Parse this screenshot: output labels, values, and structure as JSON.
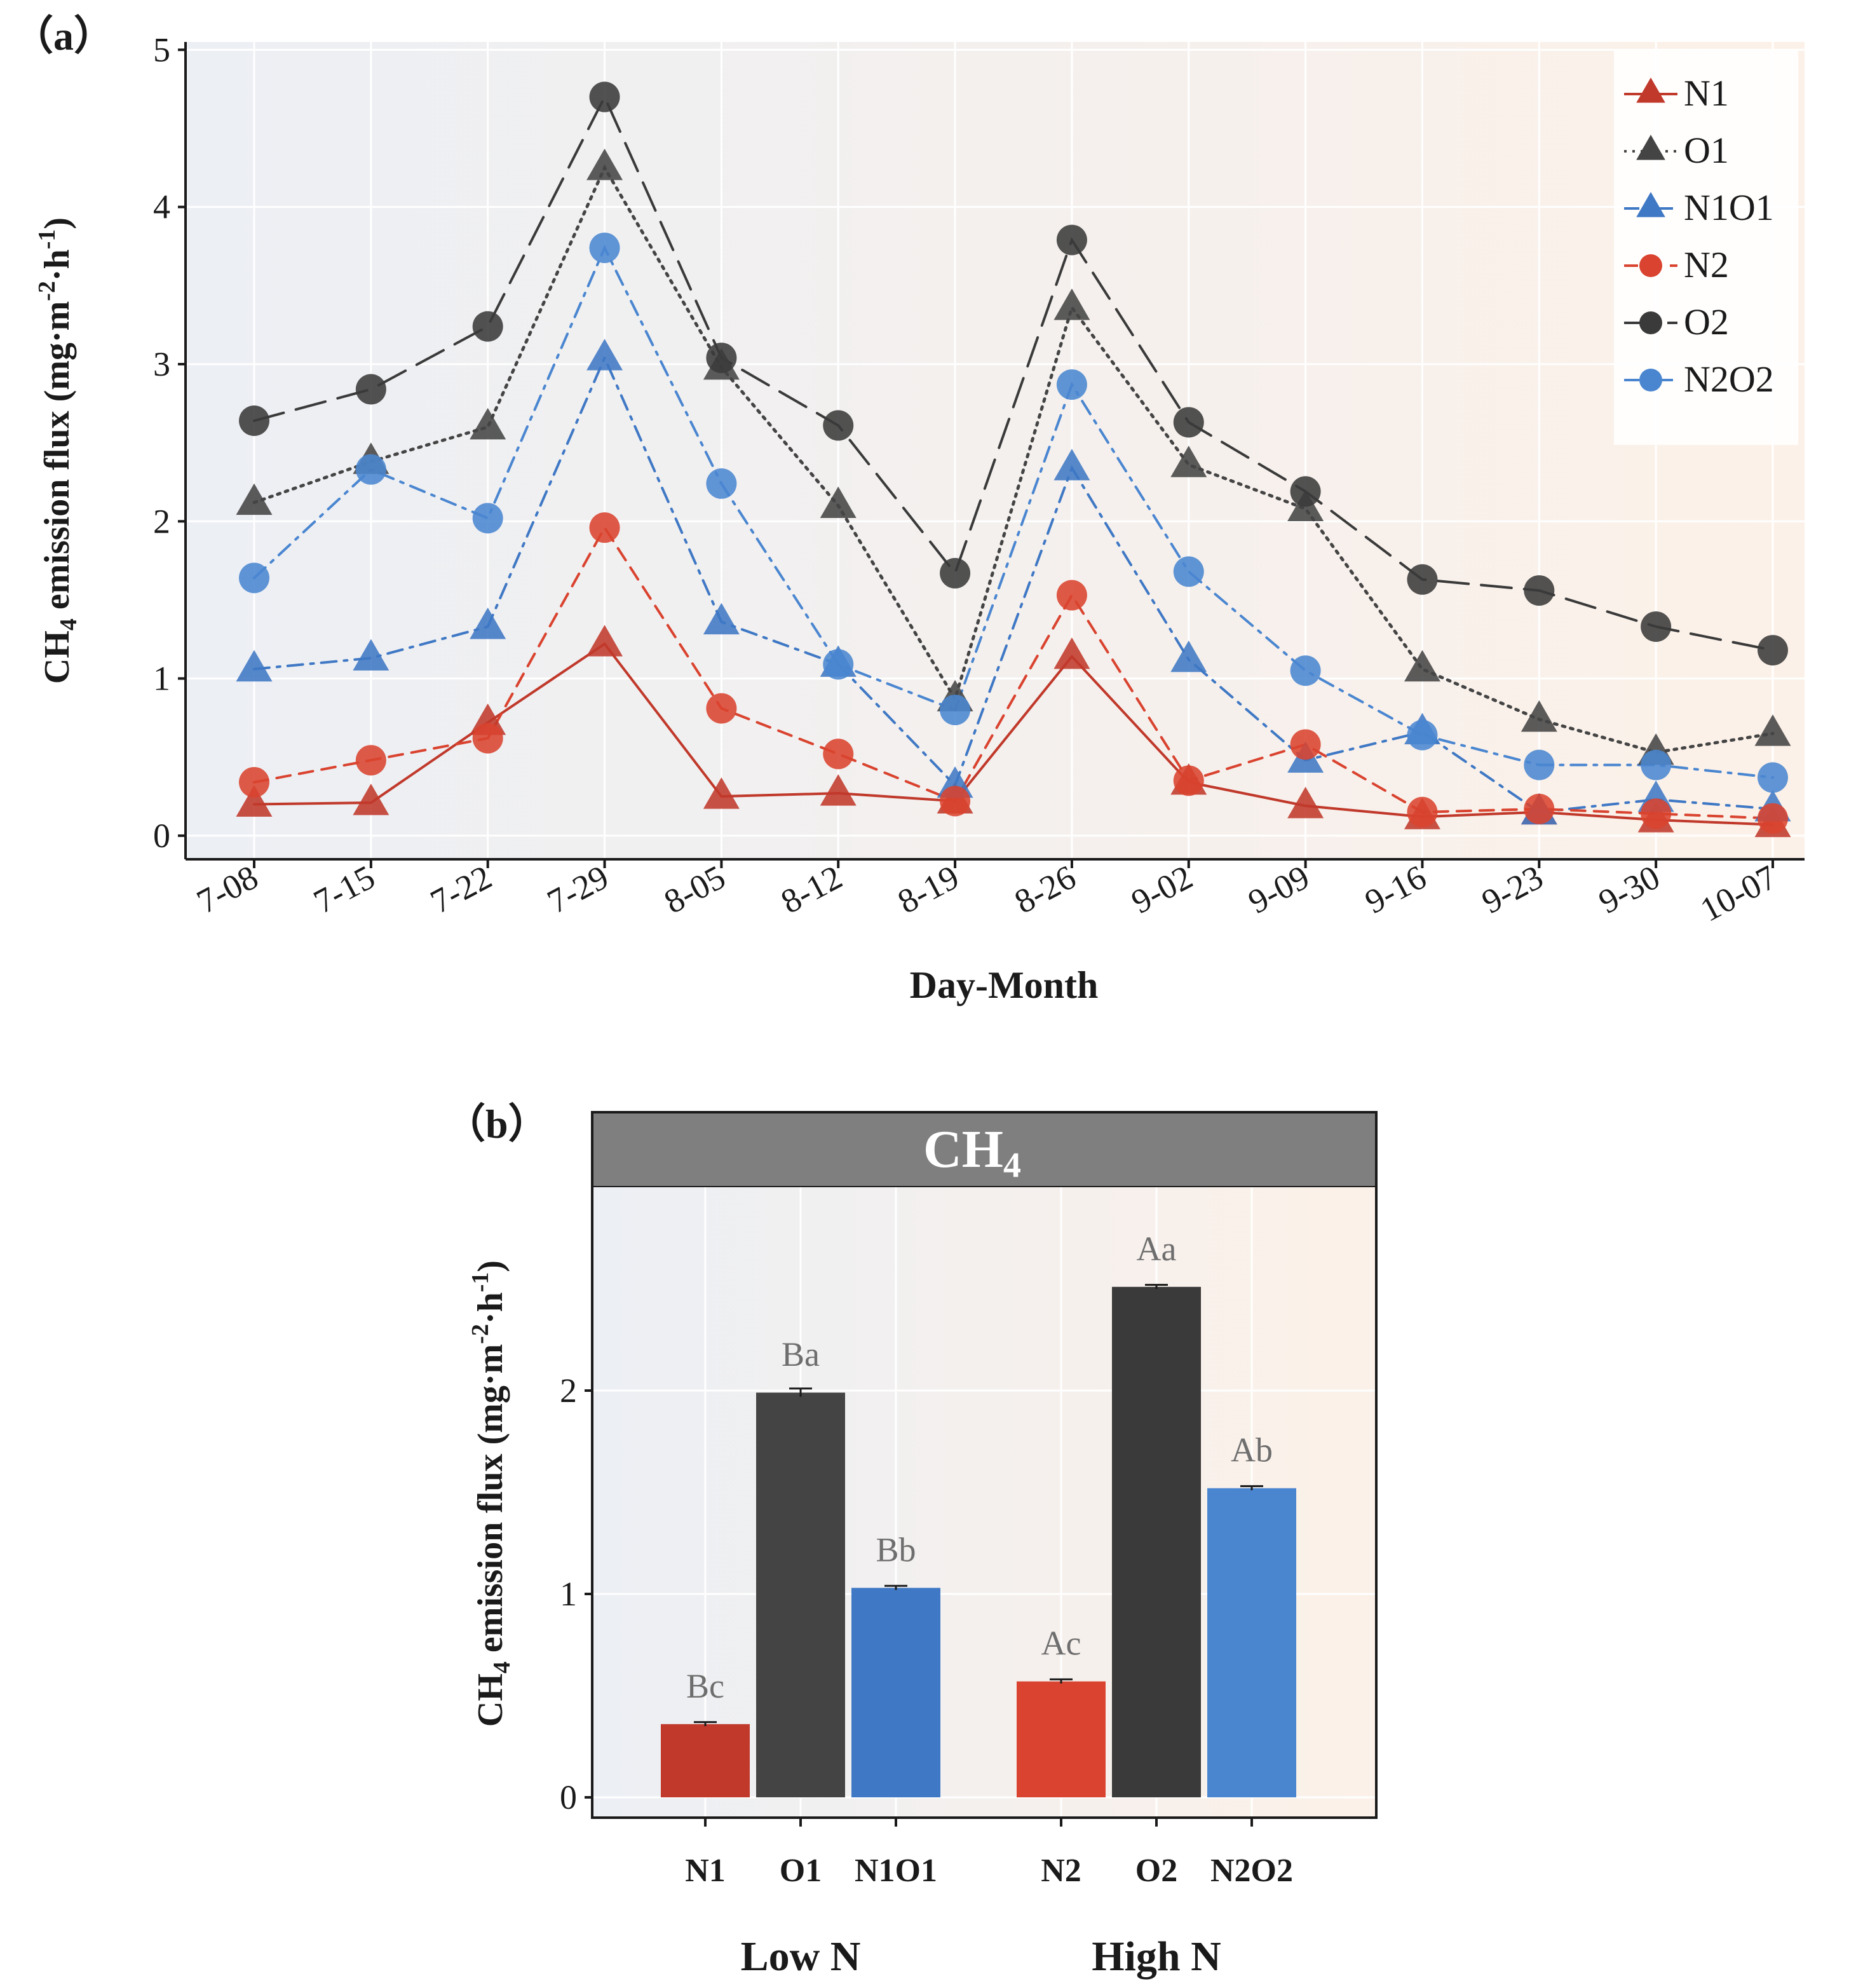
{
  "colors": {
    "N1": "#c0392b",
    "O1": "#444444",
    "N1O1": "#3f78c4",
    "N2": "#d9432f",
    "O2": "#3a3a3a",
    "N2O2": "#4a86d0",
    "strip_fill": "#7f7f7f",
    "strip_text": "#ffffff",
    "bg_left": "#eceff4",
    "bg_right": "#fcf1e8"
  },
  "chart_data": [
    {
      "type": "line",
      "panel_label": "（a）",
      "xlabel": "Day-Month",
      "ylabel": "CH4 emission flux (mg·m-2·h-1)",
      "ylabel_parts": {
        "pre": "CH",
        "sub": "4",
        "mid": " emission flux (mg·m",
        "sup1": "-2",
        "mid2": "·h",
        "sup2": "-1",
        "post": ")"
      },
      "ylim": [
        -0.15,
        5.05
      ],
      "yticks": [
        0,
        1,
        2,
        3,
        4,
        5
      ],
      "categories": [
        "7-08",
        "7-15",
        "7-22",
        "7-29",
        "8-05",
        "8-12",
        "8-19",
        "8-26",
        "9-02",
        "9-09",
        "9-16",
        "9-23",
        "9-30",
        "10-07"
      ],
      "series": [
        {
          "name": "N1",
          "marker": "triangle",
          "dash": "solid",
          "values": [
            0.2,
            0.21,
            0.72,
            1.22,
            0.25,
            0.27,
            0.22,
            1.14,
            0.34,
            0.19,
            0.12,
            0.15,
            0.1,
            0.07
          ]
        },
        {
          "name": "O1",
          "marker": "triangle",
          "dash": "dotted",
          "values": [
            2.12,
            2.38,
            2.6,
            4.25,
            2.98,
            2.1,
            0.87,
            3.36,
            2.36,
            2.08,
            1.06,
            0.74,
            0.53,
            0.65
          ]
        },
        {
          "name": "N1O1",
          "marker": "triangle",
          "dash": "dashdot",
          "values": [
            1.06,
            1.13,
            1.33,
            3.04,
            1.36,
            1.09,
            0.32,
            2.34,
            1.12,
            0.48,
            0.66,
            0.15,
            0.23,
            0.17
          ]
        },
        {
          "name": "N2",
          "marker": "circle",
          "dash": "dashed",
          "values": [
            0.34,
            0.48,
            0.62,
            1.96,
            0.81,
            0.52,
            0.22,
            1.53,
            0.35,
            0.58,
            0.15,
            0.17,
            0.14,
            0.11
          ]
        },
        {
          "name": "O2",
          "marker": "circle",
          "dash": "longdash",
          "values": [
            2.64,
            2.84,
            3.24,
            4.7,
            3.04,
            2.61,
            1.67,
            3.79,
            2.63,
            2.19,
            1.63,
            1.56,
            1.33,
            1.18
          ]
        },
        {
          "name": "N2O2",
          "marker": "circle",
          "dash": "dashdot",
          "values": [
            1.64,
            2.33,
            2.02,
            3.74,
            2.24,
            1.09,
            0.8,
            2.87,
            1.68,
            1.05,
            0.64,
            0.45,
            0.45,
            0.37
          ]
        }
      ],
      "legend": [
        "N1",
        "O1",
        "N1O1",
        "N2",
        "O2",
        "N2O2"
      ],
      "legend_position": "top-right"
    },
    {
      "type": "bar",
      "panel_label": "（b）",
      "strip_title": {
        "pre": "CH",
        "sub": "4"
      },
      "ylabel": "CH4 emission flux (mg·m-2·h-1)",
      "ylabel_parts": {
        "pre": "CH",
        "sub": "4",
        "mid": " emission flux (mg·m",
        "sup1": "-2",
        "mid2": "·h",
        "sup2": "-1",
        "post": ")"
      },
      "ylim": [
        -0.1,
        3.0
      ],
      "yticks": [
        0,
        1,
        2
      ],
      "groups": [
        {
          "label": "Low N",
          "bars": [
            {
              "name": "N1",
              "value": 0.36,
              "error": 0.01,
              "sig": "Bc"
            },
            {
              "name": "O1",
              "value": 1.99,
              "error": 0.02,
              "sig": "Ba"
            },
            {
              "name": "N1O1",
              "value": 1.03,
              "error": 0.01,
              "sig": "Bb"
            }
          ]
        },
        {
          "label": "High N",
          "bars": [
            {
              "name": "N2",
              "value": 0.57,
              "error": 0.01,
              "sig": "Ac"
            },
            {
              "name": "O2",
              "value": 2.51,
              "error": 0.01,
              "sig": "Aa"
            },
            {
              "name": "N2O2",
              "value": 1.52,
              "error": 0.01,
              "sig": "Ab"
            }
          ]
        }
      ]
    }
  ]
}
